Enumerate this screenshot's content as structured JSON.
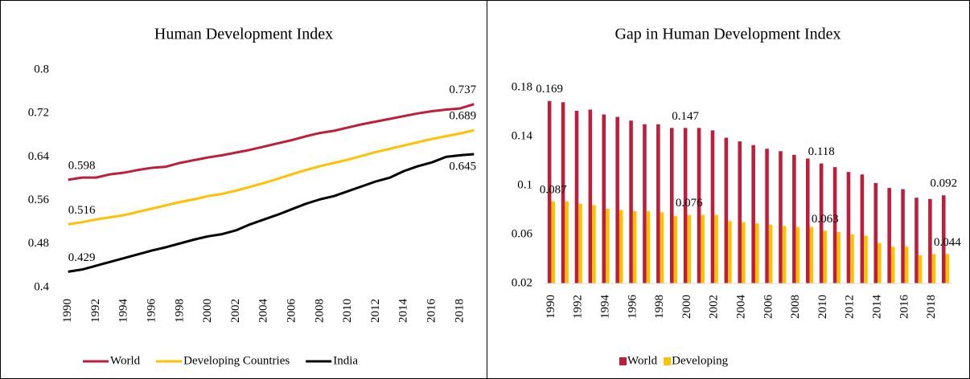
{
  "chart_data": [
    {
      "type": "line",
      "title": "Human Development Index",
      "categories": [
        1990,
        null,
        1992,
        null,
        1994,
        null,
        1996,
        null,
        1998,
        null,
        2000,
        null,
        2002,
        null,
        2004,
        null,
        2006,
        null,
        2008,
        null,
        2010,
        null,
        2012,
        null,
        2014,
        null,
        2016,
        null,
        2018,
        null
      ],
      "series": [
        {
          "name": "World",
          "color": "#be1e3c",
          "values": [
            0.598,
            0.602,
            0.602,
            0.608,
            0.611,
            0.616,
            0.62,
            0.622,
            0.629,
            0.634,
            0.639,
            0.643,
            0.648,
            0.653,
            0.659,
            0.665,
            0.671,
            0.678,
            0.684,
            0.688,
            0.694,
            0.7,
            0.705,
            0.71,
            0.715,
            0.72,
            0.724,
            0.727,
            0.729,
            0.737
          ]
        },
        {
          "name": "Developing Countries",
          "color": "#ffc000",
          "values": [
            0.516,
            0.52,
            0.525,
            0.529,
            0.533,
            0.539,
            0.545,
            0.551,
            0.557,
            0.562,
            0.568,
            0.572,
            0.578,
            0.585,
            0.592,
            0.6,
            0.608,
            0.616,
            0.623,
            0.629,
            0.635,
            0.642,
            0.649,
            0.655,
            0.661,
            0.667,
            0.673,
            0.678,
            0.683,
            0.689
          ]
        },
        {
          "name": "India",
          "color": "#000000",
          "values": [
            0.429,
            0.433,
            0.44,
            0.447,
            0.454,
            0.461,
            0.468,
            0.474,
            0.481,
            0.488,
            0.494,
            0.498,
            0.505,
            0.516,
            0.525,
            0.534,
            0.544,
            0.554,
            0.562,
            0.568,
            0.577,
            0.586,
            0.595,
            0.602,
            0.614,
            0.623,
            0.63,
            0.64,
            0.643,
            0.645
          ]
        }
      ],
      "labeled_indices": [
        0,
        29
      ],
      "ylim": [
        0.4,
        0.8
      ],
      "yticks": [
        0.4,
        0.48,
        0.56,
        0.64,
        0.72,
        0.8
      ],
      "grid": false,
      "legend": "bottom"
    },
    {
      "type": "bar",
      "title": "Gap in Human Development Index",
      "categories": [
        1990,
        null,
        1992,
        null,
        1994,
        null,
        1996,
        null,
        1998,
        null,
        2000,
        null,
        2002,
        null,
        2004,
        null,
        2006,
        null,
        2008,
        null,
        2010,
        null,
        2012,
        null,
        2014,
        null,
        2016,
        null,
        2018,
        null
      ],
      "series": [
        {
          "name": "World",
          "color": "#be1e3c",
          "values": [
            0.169,
            0.168,
            0.161,
            0.162,
            0.158,
            0.156,
            0.153,
            0.15,
            0.15,
            0.147,
            0.147,
            0.147,
            0.145,
            0.139,
            0.136,
            0.133,
            0.13,
            0.128,
            0.125,
            0.122,
            0.118,
            0.115,
            0.111,
            0.109,
            0.102,
            0.098,
            0.097,
            0.09,
            0.089,
            0.092
          ]
        },
        {
          "name": "Developing",
          "color": "#ffc000",
          "values": [
            0.087,
            0.087,
            0.085,
            0.084,
            0.081,
            0.08,
            0.079,
            0.079,
            0.078,
            0.075,
            0.076,
            0.076,
            0.076,
            0.071,
            0.07,
            0.069,
            0.068,
            0.067,
            0.066,
            0.066,
            0.063,
            0.062,
            0.06,
            0.059,
            0.053,
            0.05,
            0.05,
            0.043,
            0.044,
            0.044
          ]
        }
      ],
      "labeled_indices": [
        0,
        10,
        20,
        29
      ],
      "ylim": [
        0.02,
        0.18
      ],
      "yticks": [
        0.02,
        0.06,
        0.1,
        0.14,
        0.18
      ],
      "grid": false,
      "legend": "bottom"
    }
  ]
}
